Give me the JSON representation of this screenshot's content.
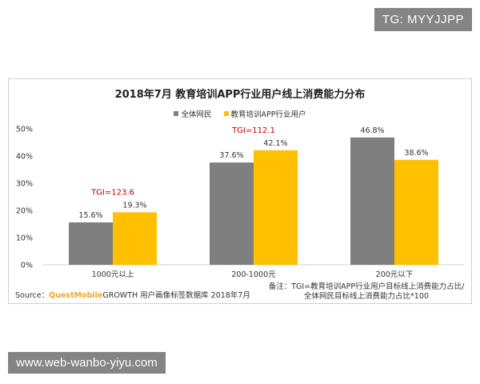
{
  "watermark_top": "TG: MYYJJPP",
  "watermark_bottom": "www.web-wanbo-yiyu.com",
  "chart_data": {
    "type": "bar",
    "title": "2018年7月 教育培训APP行业用户线上消费能力分布",
    "categories": [
      "1000元以上",
      "200-1000元",
      "200元以下"
    ],
    "series": [
      {
        "name": "全体网民",
        "values": [
          15.6,
          37.6,
          46.8
        ],
        "labels": [
          "15.6%",
          "37.6%",
          "46.8%"
        ],
        "color": "#7f7f7f"
      },
      {
        "name": "教育培训APP行业用户",
        "values": [
          19.3,
          42.1,
          38.6
        ],
        "labels": [
          "19.3%",
          "42.1%",
          "38.6%"
        ],
        "color": "#ffc000"
      }
    ],
    "y_ticks": [
      "0%",
      "10%",
      "20%",
      "30%",
      "40%",
      "50%"
    ],
    "ylim": [
      0,
      50
    ],
    "annotations": [
      {
        "category_index": 0,
        "text": "TGI=123.6",
        "color": "#c00000"
      },
      {
        "category_index": 1,
        "text": "TGI=112.1",
        "color": "#c00000"
      }
    ],
    "grid": false,
    "legend_position": "top"
  },
  "source": {
    "prefix": "Source：",
    "brand": "QuestMobile",
    "text": "GROWTH 用户画像标签数据库 2018年7月"
  },
  "note": {
    "line1": "备注：TGI=教育培训APP行业用户目标线上消费能力占比/",
    "line2": "全体网民目标线上消费能力占比*100"
  }
}
